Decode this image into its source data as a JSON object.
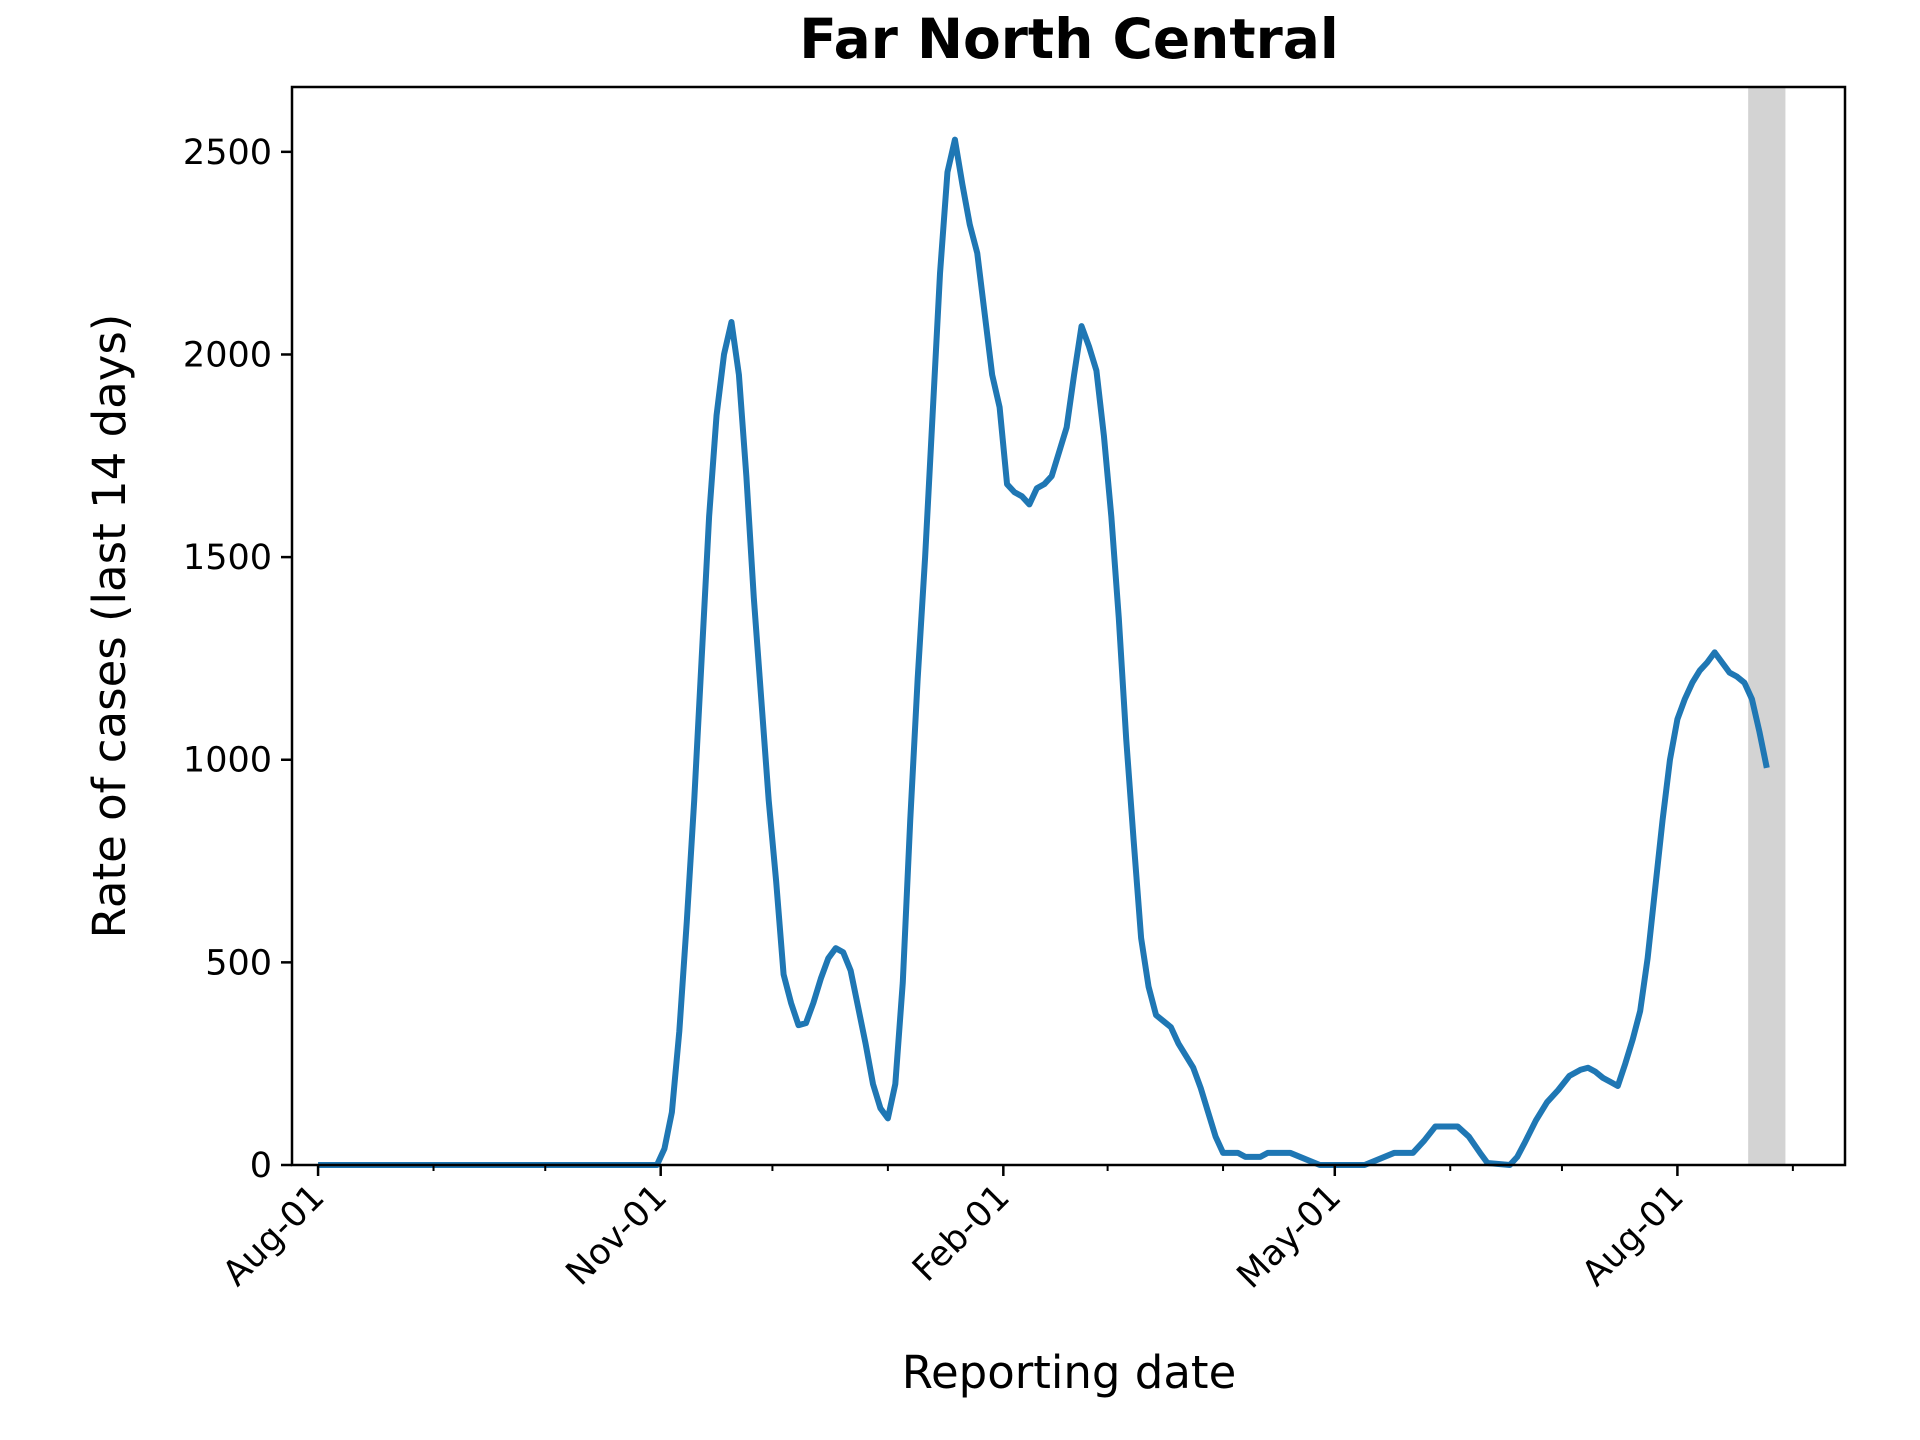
{
  "chart_data": {
    "type": "line",
    "title": "Far North Central",
    "xlabel": "Reporting date",
    "ylabel": "Rate of cases (last 14 days)",
    "x_axis": "date",
    "xlim": [
      "2020-07-25",
      "2021-09-15"
    ],
    "ylim": [
      0,
      2660
    ],
    "yticks": [
      0,
      500,
      1000,
      1500,
      2000,
      2500
    ],
    "xticks_major": [
      {
        "date": "2020-08-01",
        "label": "Aug-01"
      },
      {
        "date": "2020-11-01",
        "label": "Nov-01"
      },
      {
        "date": "2021-02-01",
        "label": "Feb-01"
      },
      {
        "date": "2021-05-01",
        "label": "May-01"
      },
      {
        "date": "2021-08-01",
        "label": "Aug-01"
      }
    ],
    "xticks_minor": [
      "2020-09-01",
      "2020-10-01",
      "2020-12-01",
      "2021-01-01",
      "2021-03-01",
      "2021-04-01",
      "2021-06-01",
      "2021-07-01",
      "2021-09-01"
    ],
    "shaded_band": {
      "start": "2021-08-20",
      "end": "2021-08-30",
      "color": "#d3d3d3"
    },
    "line_color": "#1f77b4",
    "series": [
      {
        "points": [
          [
            "2020-08-01",
            0
          ],
          [
            "2020-10-15",
            0
          ],
          [
            "2020-10-31",
            0
          ],
          [
            "2020-11-02",
            40
          ],
          [
            "2020-11-04",
            130
          ],
          [
            "2020-11-06",
            330
          ],
          [
            "2020-11-08",
            600
          ],
          [
            "2020-11-10",
            900
          ],
          [
            "2020-11-12",
            1250
          ],
          [
            "2020-11-14",
            1600
          ],
          [
            "2020-11-16",
            1850
          ],
          [
            "2020-11-18",
            2000
          ],
          [
            "2020-11-20",
            2080
          ],
          [
            "2020-11-22",
            1950
          ],
          [
            "2020-11-24",
            1700
          ],
          [
            "2020-11-26",
            1400
          ],
          [
            "2020-11-28",
            1150
          ],
          [
            "2020-11-30",
            900
          ],
          [
            "2020-12-02",
            700
          ],
          [
            "2020-12-04",
            470
          ],
          [
            "2020-12-06",
            400
          ],
          [
            "2020-12-08",
            345
          ],
          [
            "2020-12-10",
            350
          ],
          [
            "2020-12-12",
            400
          ],
          [
            "2020-12-14",
            460
          ],
          [
            "2020-12-16",
            510
          ],
          [
            "2020-12-18",
            535
          ],
          [
            "2020-12-20",
            525
          ],
          [
            "2020-12-22",
            480
          ],
          [
            "2020-12-24",
            390
          ],
          [
            "2020-12-26",
            300
          ],
          [
            "2020-12-28",
            200
          ],
          [
            "2020-12-30",
            140
          ],
          [
            "2021-01-01",
            115
          ],
          [
            "2021-01-03",
            200
          ],
          [
            "2021-01-05",
            450
          ],
          [
            "2021-01-07",
            850
          ],
          [
            "2021-01-09",
            1200
          ],
          [
            "2021-01-11",
            1500
          ],
          [
            "2021-01-13",
            1850
          ],
          [
            "2021-01-15",
            2200
          ],
          [
            "2021-01-17",
            2450
          ],
          [
            "2021-01-19",
            2530
          ],
          [
            "2021-01-21",
            2420
          ],
          [
            "2021-01-23",
            2320
          ],
          [
            "2021-01-25",
            2250
          ],
          [
            "2021-01-27",
            2100
          ],
          [
            "2021-01-29",
            1950
          ],
          [
            "2021-01-31",
            1870
          ],
          [
            "2021-02-02",
            1680
          ],
          [
            "2021-02-04",
            1660
          ],
          [
            "2021-02-06",
            1650
          ],
          [
            "2021-02-08",
            1630
          ],
          [
            "2021-02-10",
            1670
          ],
          [
            "2021-02-12",
            1680
          ],
          [
            "2021-02-14",
            1700
          ],
          [
            "2021-02-16",
            1760
          ],
          [
            "2021-02-18",
            1820
          ],
          [
            "2021-02-20",
            1950
          ],
          [
            "2021-02-22",
            2070
          ],
          [
            "2021-02-24",
            2020
          ],
          [
            "2021-02-26",
            1960
          ],
          [
            "2021-02-28",
            1800
          ],
          [
            "2021-03-02",
            1600
          ],
          [
            "2021-03-04",
            1350
          ],
          [
            "2021-03-06",
            1050
          ],
          [
            "2021-03-08",
            800
          ],
          [
            "2021-03-10",
            560
          ],
          [
            "2021-03-12",
            440
          ],
          [
            "2021-03-14",
            370
          ],
          [
            "2021-03-16",
            355
          ],
          [
            "2021-03-18",
            340
          ],
          [
            "2021-03-20",
            300
          ],
          [
            "2021-03-22",
            270
          ],
          [
            "2021-03-24",
            240
          ],
          [
            "2021-03-26",
            190
          ],
          [
            "2021-03-28",
            130
          ],
          [
            "2021-03-30",
            70
          ],
          [
            "2021-04-01",
            30
          ],
          [
            "2021-04-05",
            30
          ],
          [
            "2021-04-07",
            20
          ],
          [
            "2021-04-11",
            20
          ],
          [
            "2021-04-13",
            30
          ],
          [
            "2021-04-19",
            30
          ],
          [
            "2021-04-23",
            15
          ],
          [
            "2021-04-27",
            0
          ],
          [
            "2021-05-09",
            0
          ],
          [
            "2021-05-13",
            15
          ],
          [
            "2021-05-17",
            30
          ],
          [
            "2021-05-22",
            30
          ],
          [
            "2021-05-25",
            60
          ],
          [
            "2021-05-28",
            95
          ],
          [
            "2021-06-03",
            95
          ],
          [
            "2021-06-06",
            70
          ],
          [
            "2021-06-09",
            30
          ],
          [
            "2021-06-11",
            5
          ],
          [
            "2021-06-17",
            0
          ],
          [
            "2021-06-19",
            20
          ],
          [
            "2021-06-21",
            55
          ],
          [
            "2021-06-24",
            110
          ],
          [
            "2021-06-27",
            155
          ],
          [
            "2021-06-30",
            185
          ],
          [
            "2021-07-03",
            220
          ],
          [
            "2021-07-06",
            235
          ],
          [
            "2021-07-08",
            240
          ],
          [
            "2021-07-10",
            230
          ],
          [
            "2021-07-12",
            215
          ],
          [
            "2021-07-14",
            205
          ],
          [
            "2021-07-16",
            195
          ],
          [
            "2021-07-18",
            250
          ],
          [
            "2021-07-20",
            310
          ],
          [
            "2021-07-22",
            380
          ],
          [
            "2021-07-24",
            510
          ],
          [
            "2021-07-26",
            680
          ],
          [
            "2021-07-28",
            850
          ],
          [
            "2021-07-30",
            1000
          ],
          [
            "2021-08-01",
            1100
          ],
          [
            "2021-08-03",
            1150
          ],
          [
            "2021-08-05",
            1190
          ],
          [
            "2021-08-07",
            1220
          ],
          [
            "2021-08-09",
            1240
          ],
          [
            "2021-08-11",
            1265
          ],
          [
            "2021-08-13",
            1240
          ],
          [
            "2021-08-15",
            1215
          ],
          [
            "2021-08-17",
            1205
          ],
          [
            "2021-08-19",
            1190
          ],
          [
            "2021-08-21",
            1150
          ],
          [
            "2021-08-23",
            1070
          ],
          [
            "2021-08-25",
            980
          ]
        ]
      }
    ]
  }
}
